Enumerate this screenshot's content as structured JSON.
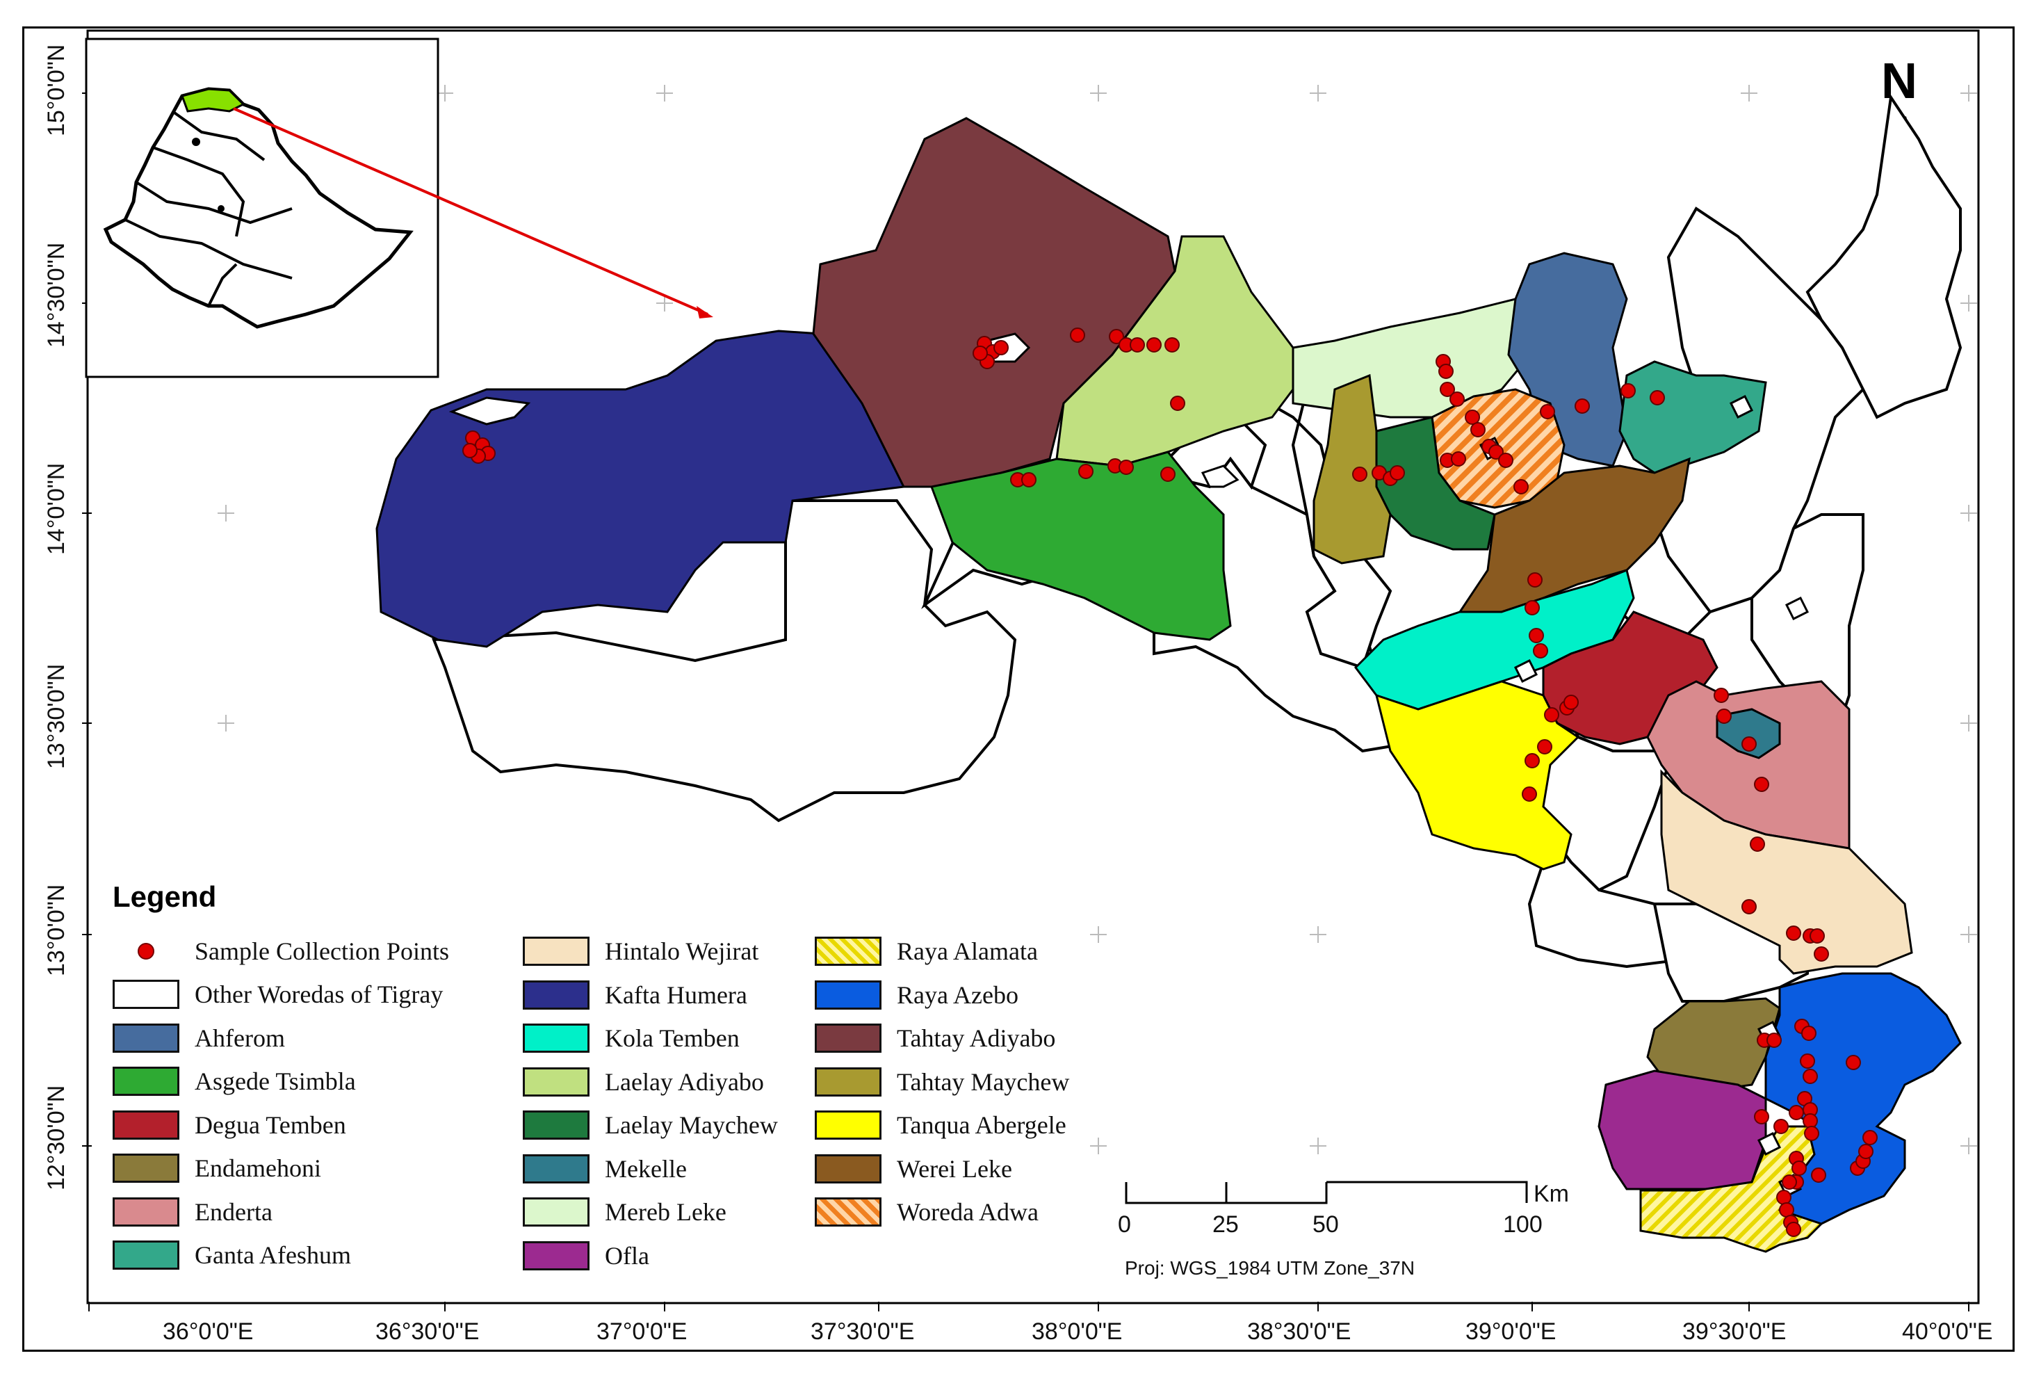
{
  "map": {
    "north_label": "N",
    "projection": "Proj: WGS_1984 UTM Zone_37N",
    "scale": {
      "unit": "Km",
      "ticks": [
        "0",
        "25",
        "50",
        "100"
      ]
    },
    "x_ticks": [
      "36°0'0\"E",
      "36°30'0\"E",
      "37°0'0\"E",
      "37°30'0\"E",
      "38°0'0\"E",
      "38°30'0\"E",
      "39°0'0\"E",
      "39°30'0\"E",
      "40°0'0\"E"
    ],
    "y_ticks": [
      "15°0'0\"N",
      "14°30'0\"N",
      "14°0'0\"N",
      "13°30'0\"N",
      "13°0'0\"N",
      "12°30'0\"N"
    ]
  },
  "legend": {
    "title": "Legend",
    "sample_points": {
      "label": "Sample Collection Points",
      "color": "#e00000"
    },
    "items": [
      {
        "label": "Other Woredas of Tigray",
        "color": "#ffffff"
      },
      {
        "label": "Ahferom",
        "color": "#466c9e"
      },
      {
        "label": "Asgede Tsimbla",
        "color": "#2eaa33"
      },
      {
        "label": "Degua Temben",
        "color": "#b3202c"
      },
      {
        "label": "Endamehoni",
        "color": "#8a7a3a"
      },
      {
        "label": "Enderta",
        "color": "#d98a8e"
      },
      {
        "label": "Ganta Afeshum",
        "color": "#33a88a"
      },
      {
        "label": "Hintalo Wejirat",
        "color": "#f7e2c0"
      },
      {
        "label": "Kafta Humera",
        "color": "#2c2f8c"
      },
      {
        "label": "Kola Temben",
        "color": "#00f0c8"
      },
      {
        "label": "Laelay Adiyabo",
        "color": "#c0e080"
      },
      {
        "label": "Laelay Maychew",
        "color": "#1e7a3e"
      },
      {
        "label": "Mekelle",
        "color": "#2f7a8c"
      },
      {
        "label": "Mereb Leke",
        "color": "#dcf7cc"
      },
      {
        "label": "Ofla",
        "color": "#9c2a90"
      },
      {
        "label": "Raya  Alamata",
        "color": "#f0e020",
        "pattern": "hatch-yellow"
      },
      {
        "label": "Raya Azebo",
        "color": "#0a5ce0"
      },
      {
        "label": "Tahtay Adiyabo",
        "color": "#7a3a40"
      },
      {
        "label": "Tahtay Maychew",
        "color": "#a89a30"
      },
      {
        "label": "Tanqua Abergele",
        "color": "#ffff00"
      },
      {
        "label": "Werei Leke",
        "color": "#8a5a20"
      },
      {
        "label": "Woreda Adwa",
        "color": "#f09030",
        "pattern": "hatch-orange"
      }
    ]
  }
}
